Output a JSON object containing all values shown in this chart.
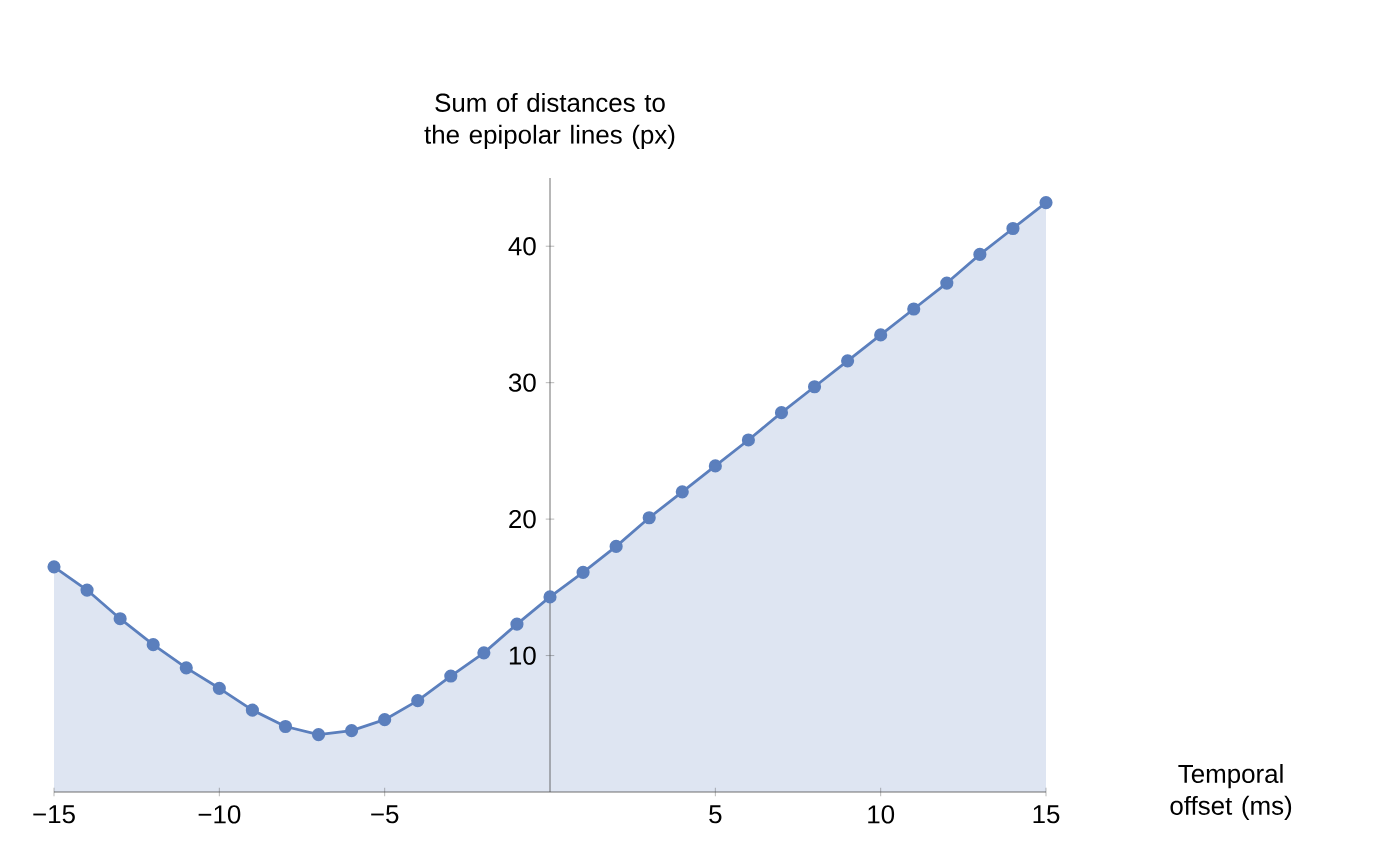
{
  "chart_data": {
    "type": "area",
    "xlabel": "Temporal offset (ms)",
    "ylabel": "Sum of distances to the epipolar lines (px)",
    "x": [
      -15,
      -14,
      -13,
      -12,
      -11,
      -10,
      -9,
      -8,
      -7,
      -6,
      -5,
      -4,
      -3,
      -2,
      -1,
      0,
      1,
      2,
      3,
      4,
      5,
      6,
      7,
      8,
      9,
      10,
      11,
      12,
      13,
      14,
      15
    ],
    "values": [
      16.5,
      14.8,
      12.7,
      10.8,
      9.1,
      7.6,
      6.0,
      4.8,
      4.2,
      4.5,
      5.3,
      6.7,
      8.5,
      10.2,
      12.3,
      14.3,
      16.1,
      18.0,
      20.1,
      22.0,
      23.9,
      25.8,
      27.8,
      29.7,
      31.6,
      33.5,
      35.4,
      37.3,
      39.4,
      41.3,
      43.2
    ],
    "color": "#5b7fbd",
    "marker": "circle",
    "xlim": [
      -15,
      15
    ],
    "ylim": [
      0,
      45
    ],
    "xticks": [
      {
        "value": -15,
        "label": "−15"
      },
      {
        "value": -10,
        "label": "−10"
      },
      {
        "value": -5,
        "label": "−5"
      },
      5,
      10,
      15
    ],
    "yticks": [
      10,
      20,
      30,
      40
    ],
    "grid": false
  }
}
